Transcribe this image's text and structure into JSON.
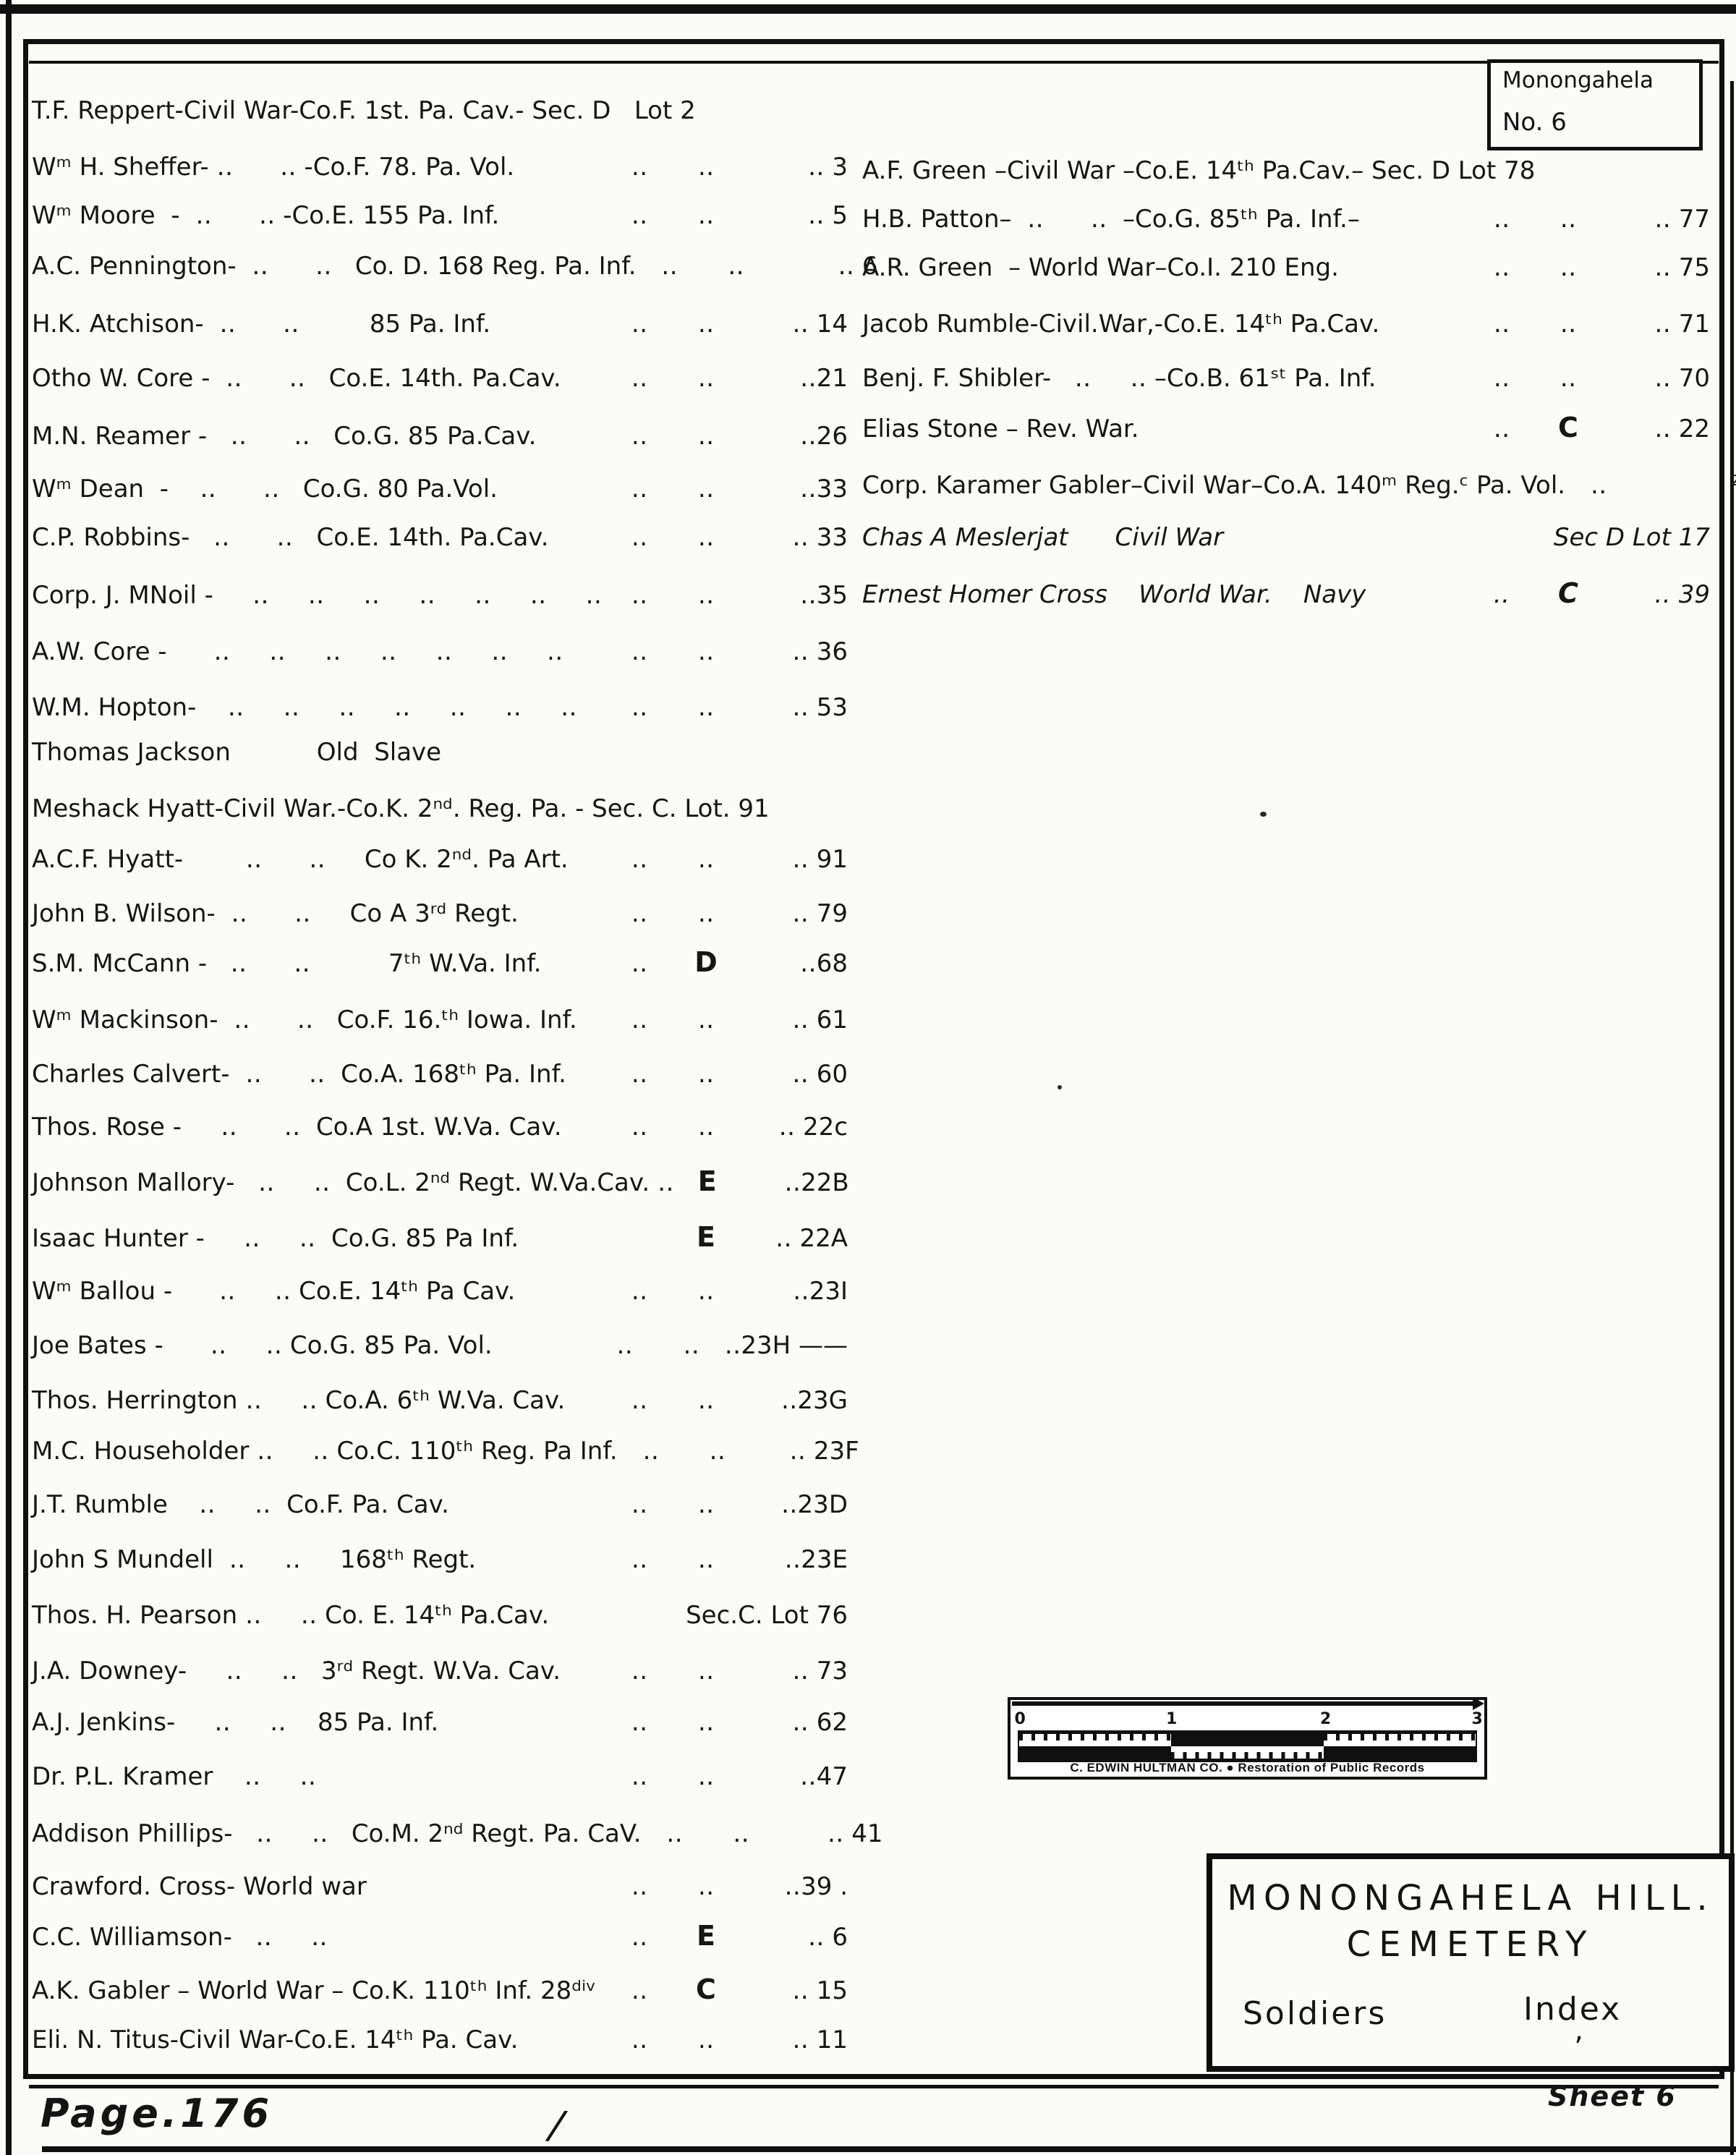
{
  "colors": {
    "ink": "#141414",
    "paper": "#fbfbf8"
  },
  "corner_box": {
    "line1": "Monongahela",
    "line2": "No. 6"
  },
  "title_box": {
    "line1": "MONONGAHELA  HILL.",
    "line2": "CEMETERY",
    "left_label": "Soldiers",
    "right_label": "Index",
    "mark": "’"
  },
  "ruler": {
    "ticks": [
      "0",
      "1",
      "2",
      "3"
    ],
    "caption": "C. EDWIN HULTMAN CO.  ●  Restoration of Public Records"
  },
  "page": {
    "page_label": "Page.176",
    "sheet_label": "Sheet 6",
    "stray_slash": "/"
  },
  "entries_left": [
    {
      "name": "T.F. Reppert-Civil War-Co.F. 1st. Pa. Cav.- Sec. D   Lot 2",
      "c1": "",
      "c2": "",
      "c3": ""
    },
    {
      "name": "Wᵐ H. Sheffer- ‥      ‥ -Co.F. 78. Pa. Vol.",
      "c1": "‥",
      "c2": "‥",
      "c3": "‥ 3"
    },
    {
      "name": "Wᵐ Moore  -  ‥      ‥ -Co.E. 155 Pa. Inf.",
      "c1": "‥",
      "c2": "‥",
      "c3": "‥ 5"
    },
    {
      "name": "A.C. Pennington-  ‥      ‥   Co. D. 168 Reg. Pa. Inf.",
      "c1": "‥",
      "c2": "‥",
      "c3": "‥ 6"
    },
    {
      "name": "H.K. Atchison-  ‥      ‥         85 Pa. Inf.",
      "c1": "‥",
      "c2": "‥",
      "c3": "‥ 14"
    },
    {
      "name": "Otho W. Core -  ‥      ‥   Co.E. 14th. Pa.Cav.",
      "c1": "‥",
      "c2": "‥",
      "c3": "‥21"
    },
    {
      "name": "M.N. Reamer -   ‥      ‥   Co.G. 85 Pa.Cav.",
      "c1": "‥",
      "c2": "‥",
      "c3": "‥26"
    },
    {
      "name": "Wᵐ Dean  -    ‥      ‥   Co.G. 80 Pa.Vol.",
      "c1": "‥",
      "c2": "‥",
      "c3": "‥33"
    },
    {
      "name": "C.P. Robbins-   ‥      ‥   Co.E. 14th. Pa.Cav.",
      "c1": "‥",
      "c2": "‥",
      "c3": "‥ 33"
    },
    {
      "name": "Corp. J. MNoil -     ‥     ‥     ‥     ‥     ‥     ‥     ‥",
      "c1": "‥",
      "c2": "‥",
      "c3": "‥35"
    },
    {
      "name": "A.W. Core -      ‥     ‥     ‥     ‥     ‥     ‥     ‥",
      "c1": "‥",
      "c2": "‥",
      "c3": "‥ 36"
    },
    {
      "name": "W.M. Hopton-    ‥     ‥     ‥     ‥     ‥     ‥     ‥",
      "c1": "‥",
      "c2": "‥",
      "c3": "‥ 53"
    },
    {
      "name": "Thomas Jackson           Old  Slave",
      "c1": "",
      "c2": "",
      "c3": ""
    },
    {
      "name": "Meshack Hyatt-Civil War.-Co.K. 2ⁿᵈ. Reg. Pa. - Sec. C. Lot. 91",
      "c1": "",
      "c2": "",
      "c3": ""
    },
    {
      "name": "A.C.F. Hyatt-        ‥      ‥     Co K. 2ⁿᵈ. Pa Art.",
      "c1": "‥",
      "c2": "‥",
      "c3": "‥ 91"
    },
    {
      "name": "John B. Wilson-  ‥      ‥     Co A 3ʳᵈ Regt.",
      "c1": "‥",
      "c2": "‥",
      "c3": "‥ 79"
    },
    {
      "name": "S.M. McCann -   ‥      ‥          7ᵗʰ W.Va. Inf.",
      "c1": "‥",
      "c2": "D",
      "c3": "‥68"
    },
    {
      "name": "Wᵐ Mackinson-  ‥      ‥   Co.F. 16.ᵗʰ Iowa. Inf.",
      "c1": "‥",
      "c2": "‥",
      "c3": "‥ 61"
    },
    {
      "name": "Charles Calvert-  ‥      ‥  Co.A. 168ᵗʰ Pa. Inf.",
      "c1": "‥",
      "c2": "‥",
      "c3": "‥ 60"
    },
    {
      "name": "Thos. Rose -     ‥      ‥  Co.A 1st. W.Va. Cav.",
      "c1": "‥",
      "c2": "‥",
      "c3": "‥ 22c"
    },
    {
      "name": "Johnson Mallory-   ‥     ‥  Co.L. 2ⁿᵈ Regt. W.Va.Cav. ‥",
      "c1": "",
      "c2": "E",
      "c3": "‥22B"
    },
    {
      "name": "Isaac Hunter -     ‥     ‥  Co.G. 85 Pa Inf.",
      "c1": "",
      "c2": "E",
      "c3": "‥ 22A"
    },
    {
      "name": "Wᵐ Ballou -      ‥     ‥ Co.E. 14ᵗʰ Pa Cav.",
      "c1": "‥",
      "c2": "‥",
      "c3": "‥23I"
    },
    {
      "name": "Joe Bates -      ‥     ‥ Co.G. 85 Pa. Vol.",
      "c1": "‥",
      "c2": "‥",
      "c3": "‥23H ——"
    },
    {
      "name": "Thos. Herrington ‥     ‥ Co.A. 6ᵗʰ W.Va. Cav.",
      "c1": "‥",
      "c2": "‥",
      "c3": "‥23G"
    },
    {
      "name": "M.C. Householder ‥     ‥ Co.C. 110ᵗʰ Reg. Pa Inf.",
      "c1": "‥",
      "c2": "‥",
      "c3": "‥ 23F"
    },
    {
      "name": "J.T. Rumble    ‥     ‥  Co.F. Pa. Cav.",
      "c1": "‥",
      "c2": "‥",
      "c3": "‥23D"
    },
    {
      "name": "John S Mundell  ‥     ‥     168ᵗʰ Regt.",
      "c1": "‥",
      "c2": "‥",
      "c3": "‥23E"
    },
    {
      "name": "Thos. H. Pearson ‥     ‥ Co. E. 14ᵗʰ Pa.Cav.",
      "c1": "",
      "c2": "",
      "c3": "Sec.C. Lot 76"
    },
    {
      "name": "J.A. Downey-     ‥     ‥   3ʳᵈ Regt. W.Va. Cav.",
      "c1": "‥",
      "c2": "‥",
      "c3": "‥ 73"
    },
    {
      "name": "A.J. Jenkins-     ‥     ‥    85 Pa. Inf.",
      "c1": "‥",
      "c2": "‥",
      "c3": "‥ 62"
    },
    {
      "name": "Dr. P.L. Kramer    ‥     ‥",
      "c1": "‥",
      "c2": "‥",
      "c3": "‥47"
    },
    {
      "name": "Addison Phillips-   ‥     ‥   Co.M. 2ⁿᵈ Regt. Pa. CaV.",
      "c1": "‥",
      "c2": "‥",
      "c3": "‥ 41"
    },
    {
      "name": "Crawford. Cross- World war",
      "c1": "‥",
      "c2": "‥",
      "c3": "‥39 ."
    },
    {
      "name": "C.C. Williamson-   ‥     ‥",
      "c1": "‥",
      "c2": "E",
      "c3": "‥ 6"
    },
    {
      "name": "A.K. Gabler – World War – Co.K. 110ᵗʰ Inf. 28ᵈⁱᵛ",
      "c1": "‥",
      "c2": "C",
      "c3": "‥ 15"
    },
    {
      "name": "Eli. N. Titus-Civil War-Co.E. 14ᵗʰ Pa. Cav.",
      "c1": "‥",
      "c2": "‥",
      "c3": "‥ 11"
    }
  ],
  "entries_right": [
    {
      "name": "A.F. Green –Civil War –Co.E. 14ᵗʰ Pa.Cav.– Sec. D Lot 78",
      "c1": "",
      "c2": "",
      "c3": ""
    },
    {
      "name": "H.B. Patton–  ‥      ‥  –Co.G. 85ᵗʰ Pa. Inf.–",
      "c1": "‥",
      "c2": "‥",
      "c3": "‥ 77"
    },
    {
      "name": "A.R. Green  – World War–Co.I. 210 Eng.",
      "c1": "‥",
      "c2": "‥",
      "c3": "‥ 75"
    },
    {
      "name": "Jacob Rumble-Civil.War,-Co.E. 14ᵗʰ Pa.Cav.",
      "c1": "‥",
      "c2": "‥",
      "c3": "‥ 71"
    },
    {
      "name": "Benj. F. Shibler-   ‥     ‥ –Co.B. 61ˢᵗ Pa. Inf.",
      "c1": "‥",
      "c2": "‥",
      "c3": "‥ 70"
    },
    {
      "name": "Elias Stone – Rev. War.",
      "c1": "‥",
      "c2": "C",
      "c3": "‥ 22"
    },
    {
      "name": "Corp. Karamer Gabler–Civil War–Co.A. 140ᵐ Reg.ᶜ Pa. Vol.",
      "c1": "",
      "c2": "‥",
      "c3": "²"
    },
    {
      "name": "Chas A Meslerjat      Civil War",
      "c1": "",
      "c2": "",
      "c3": "Sec D Lot 17",
      "script": "cursive"
    },
    {
      "name": "Ernest Homer Cross    World War.    Navy",
      "c1": "‥",
      "c2": "C",
      "c3": "‥ 39",
      "script": "cursive"
    }
  ]
}
